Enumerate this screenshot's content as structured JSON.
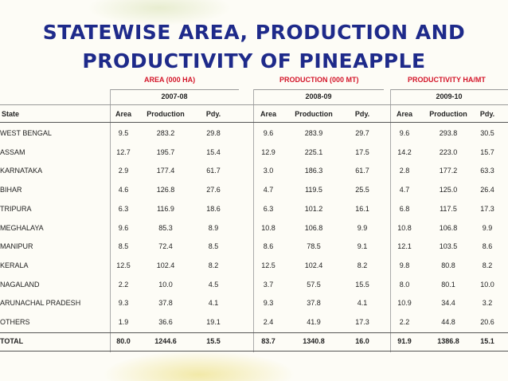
{
  "header": {
    "title_lines": [
      "STATEWISE AREA, PRODUCTION AND",
      "PRODUCTIVITY OF PINEAPPLE"
    ],
    "units": [
      "AREA (000 HA)",
      "PRODUCTION (000 MT)",
      "PRODUCTIVITY HA/MT"
    ]
  },
  "table": {
    "years": [
      "2007-08",
      "2008-09",
      "2009-10"
    ],
    "columns": [
      "State",
      "Area",
      "Production",
      "Pdy.",
      "Area",
      "Production",
      "Pdy.",
      "Area",
      "Production",
      "Pdy."
    ],
    "rows": [
      [
        "WEST BENGAL",
        "9.5",
        "283.2",
        "29.8",
        "9.6",
        "283.9",
        "29.7",
        "9.6",
        "293.8",
        "30.5"
      ],
      [
        "ASSAM",
        "12.7",
        "195.7",
        "15.4",
        "12.9",
        "225.1",
        "17.5",
        "14.2",
        "223.0",
        "15.7"
      ],
      [
        "KARNATAKA",
        "2.9",
        "177.4",
        "61.7",
        "3.0",
        "186.3",
        "61.7",
        "2.8",
        "177.2",
        "63.3"
      ],
      [
        "BIHAR",
        "4.6",
        "126.8",
        "27.6",
        "4.7",
        "119.5",
        "25.5",
        "4.7",
        "125.0",
        "26.4"
      ],
      [
        "TRIPURA",
        "6.3",
        "116.9",
        "18.6",
        "6.3",
        "101.2",
        "16.1",
        "6.8",
        "117.5",
        "17.3"
      ],
      [
        "MEGHALAYA",
        "9.6",
        "85.3",
        "8.9",
        "10.8",
        "106.8",
        "9.9",
        "10.8",
        "106.8",
        "9.9"
      ],
      [
        "MANIPUR",
        "8.5",
        "72.4",
        "8.5",
        "8.6",
        "78.5",
        "9.1",
        "12.1",
        "103.5",
        "8.6"
      ],
      [
        "KERALA",
        "12.5",
        "102.4",
        "8.2",
        "12.5",
        "102.4",
        "8.2",
        "9.8",
        "80.8",
        "8.2"
      ],
      [
        "NAGALAND",
        "2.2",
        "10.0",
        "4.5",
        "3.7",
        "57.5",
        "15.5",
        "8.0",
        "80.1",
        "10.0"
      ],
      [
        "ARUNACHAL PRADESH",
        "9.3",
        "37.8",
        "4.1",
        "9.3",
        "37.8",
        "4.1",
        "10.9",
        "34.4",
        "3.2"
      ],
      [
        "OTHERS",
        "1.9",
        "36.6",
        "19.1",
        "2.4",
        "41.9",
        "17.3",
        "2.2",
        "44.8",
        "20.6"
      ],
      [
        "TOTAL",
        "80.0",
        "1244.6",
        "15.5",
        "83.7",
        "1340.8",
        "16.0",
        "91.9",
        "1386.8",
        "15.1"
      ]
    ]
  }
}
